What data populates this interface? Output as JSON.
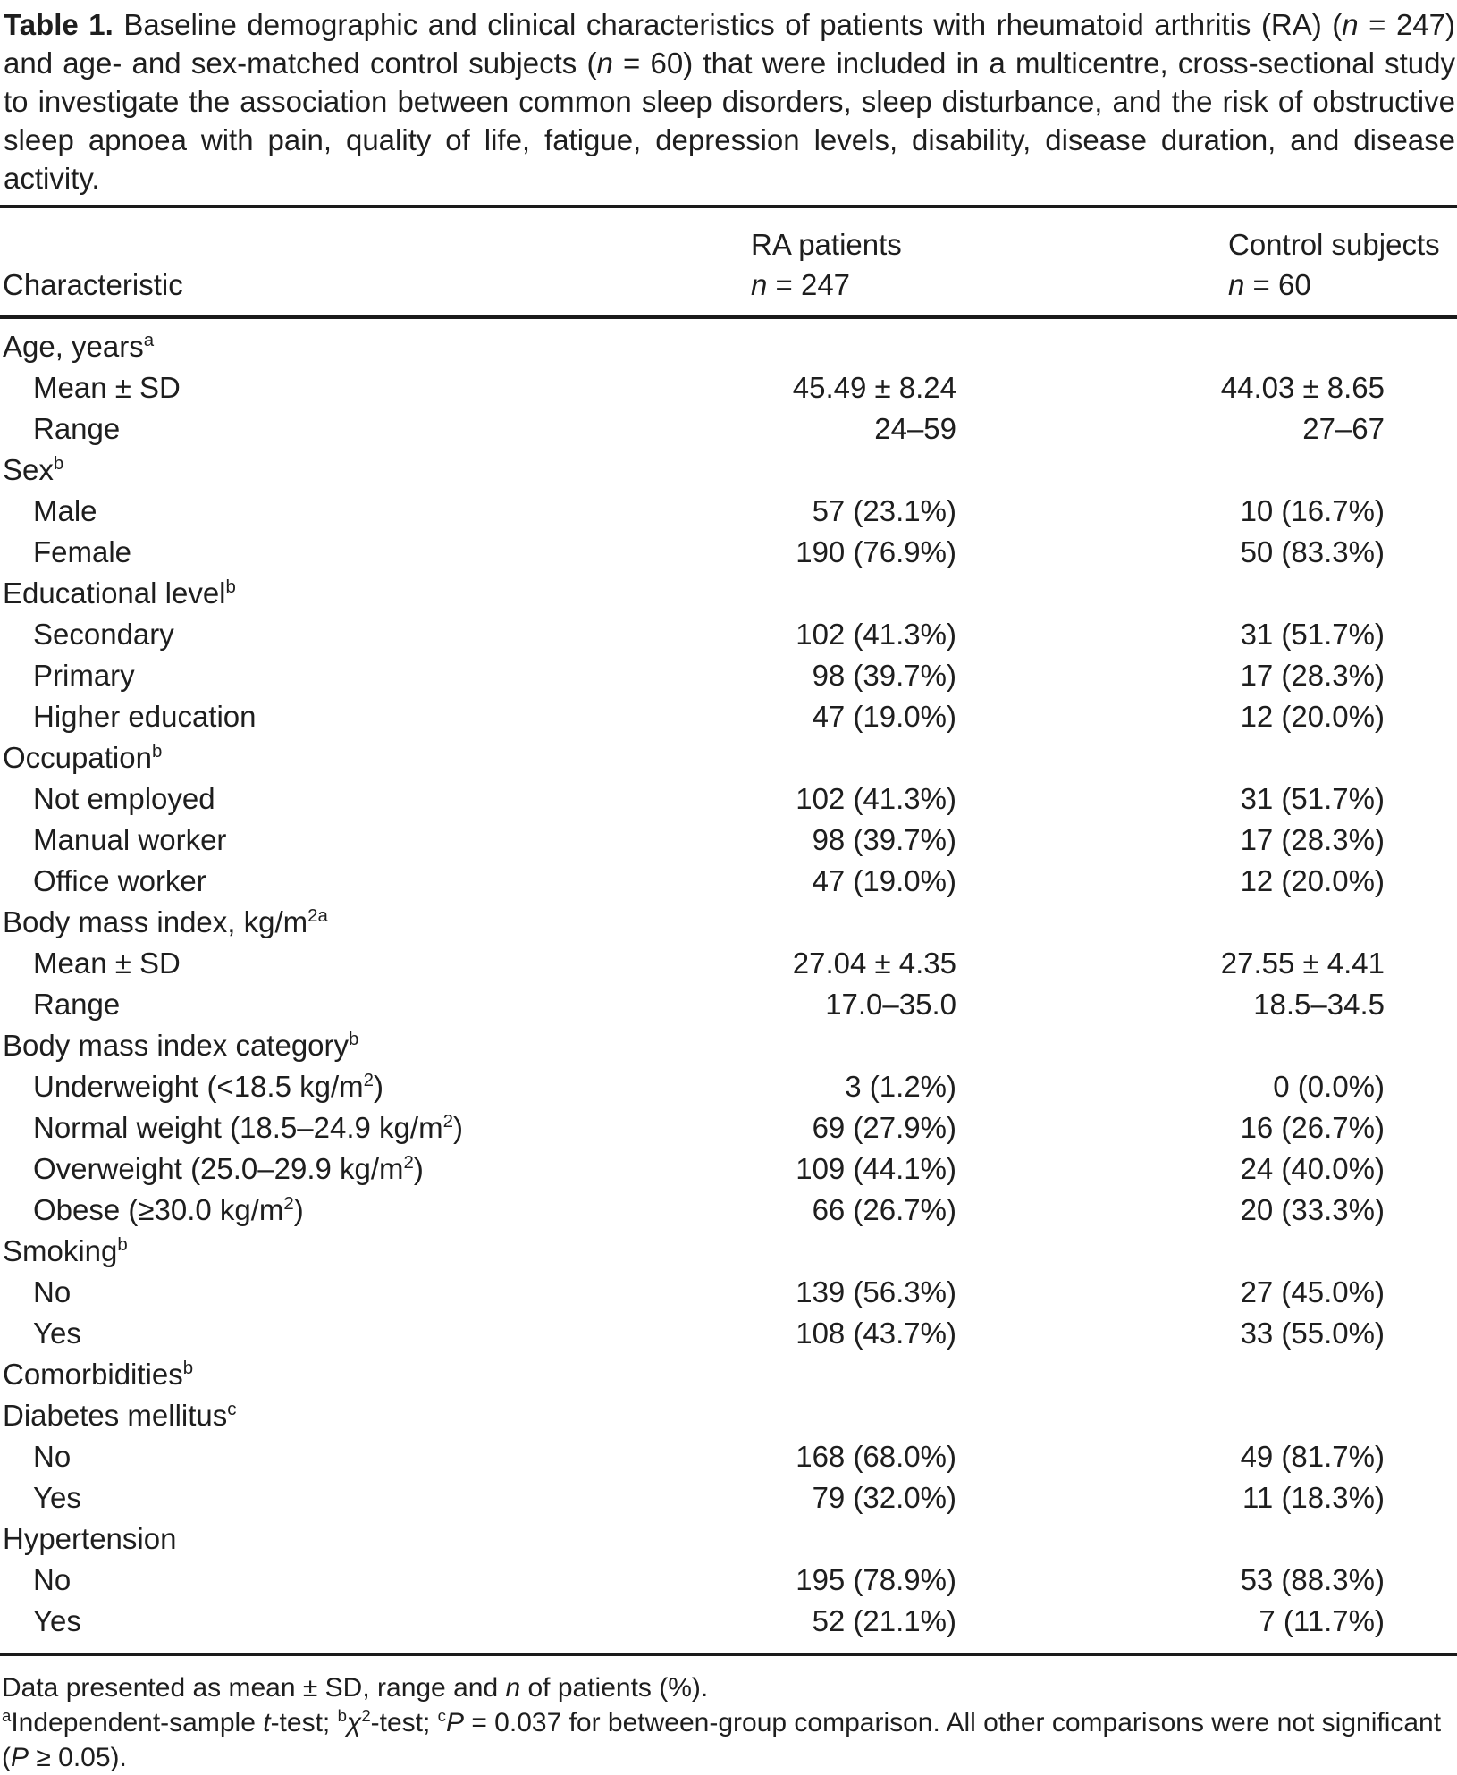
{
  "colors": {
    "background": "#ffffff",
    "text": "#1e1e1e",
    "rule": "#1a1a1a"
  },
  "title": {
    "segments": [
      {
        "t": "Table 1.",
        "b": true
      },
      {
        "t": " Baseline demographic and clinical characteristics of patients with rheumatoid arthritis (RA) ("
      },
      {
        "t": "n",
        "i": true
      },
      {
        "t": " = 247) and age- and sex-matched control subjects ("
      },
      {
        "t": "n",
        "i": true
      },
      {
        "t": " = 60) that were included in a multicentre, cross-sectional study to investigate the association between common sleep disorders, sleep disturbance, and the risk of obstructive sleep apnoea with pain, quality of life, fatigue, depression levels, disability, disease duration, and disease activity."
      }
    ]
  },
  "table": {
    "header": {
      "characteristic": "Characteristic",
      "ra_line1": "RA patients",
      "ra_line2": [
        {
          "t": "n",
          "i": true
        },
        {
          "t": " = 247"
        }
      ],
      "control_line1": "Control subjects",
      "control_line2": [
        {
          "t": "n",
          "i": true
        },
        {
          "t": " = 60"
        }
      ]
    },
    "rows": [
      {
        "type": "section",
        "label": [
          {
            "t": "Age, years"
          },
          {
            "t": "a",
            "sup": true
          }
        ]
      },
      {
        "type": "data",
        "indent": true,
        "label": [
          {
            "t": "Mean ± SD"
          }
        ],
        "ra": "45.49 ± 8.24",
        "control": "44.03 ± 8.65"
      },
      {
        "type": "data",
        "indent": true,
        "label": [
          {
            "t": "Range"
          }
        ],
        "ra": "24–59",
        "control": "27–67"
      },
      {
        "type": "section",
        "label": [
          {
            "t": "Sex"
          },
          {
            "t": "b",
            "sup": true
          }
        ]
      },
      {
        "type": "data",
        "indent": true,
        "label": [
          {
            "t": "Male"
          }
        ],
        "ra": "57 (23.1%)",
        "control": "10 (16.7%)"
      },
      {
        "type": "data",
        "indent": true,
        "label": [
          {
            "t": "Female"
          }
        ],
        "ra": "190 (76.9%)",
        "control": "50 (83.3%)"
      },
      {
        "type": "section",
        "label": [
          {
            "t": "Educational level"
          },
          {
            "t": "b",
            "sup": true
          }
        ]
      },
      {
        "type": "data",
        "indent": true,
        "label": [
          {
            "t": "Secondary"
          }
        ],
        "ra": "102 (41.3%)",
        "control": "31 (51.7%)"
      },
      {
        "type": "data",
        "indent": true,
        "label": [
          {
            "t": "Primary"
          }
        ],
        "ra": "98 (39.7%)",
        "control": "17 (28.3%)"
      },
      {
        "type": "data",
        "indent": true,
        "label": [
          {
            "t": "Higher education"
          }
        ],
        "ra": "47 (19.0%)",
        "control": "12 (20.0%)"
      },
      {
        "type": "section",
        "label": [
          {
            "t": "Occupation"
          },
          {
            "t": "b",
            "sup": true
          }
        ]
      },
      {
        "type": "data",
        "indent": true,
        "label": [
          {
            "t": "Not employed"
          }
        ],
        "ra": "102 (41.3%)",
        "control": "31 (51.7%)"
      },
      {
        "type": "data",
        "indent": true,
        "label": [
          {
            "t": "Manual worker"
          }
        ],
        "ra": "98 (39.7%)",
        "control": "17 (28.3%)"
      },
      {
        "type": "data",
        "indent": true,
        "label": [
          {
            "t": "Office worker"
          }
        ],
        "ra": "47 (19.0%)",
        "control": "12 (20.0%)"
      },
      {
        "type": "section",
        "label": [
          {
            "t": "Body mass index, kg/m"
          },
          {
            "t": "2a",
            "sup": true
          }
        ]
      },
      {
        "type": "data",
        "indent": true,
        "label": [
          {
            "t": "Mean ± SD"
          }
        ],
        "ra": "27.04 ± 4.35",
        "control": "27.55 ± 4.41"
      },
      {
        "type": "data",
        "indent": true,
        "label": [
          {
            "t": "Range"
          }
        ],
        "ra": "17.0–35.0",
        "control": "18.5–34.5"
      },
      {
        "type": "section",
        "label": [
          {
            "t": "Body mass index category"
          },
          {
            "t": "b",
            "sup": true
          }
        ]
      },
      {
        "type": "data",
        "indent": true,
        "label": [
          {
            "t": "Underweight (<18.5 kg/m"
          },
          {
            "t": "2",
            "sup": true
          },
          {
            "t": ")"
          }
        ],
        "ra": "3 (1.2%)",
        "control": "0 (0.0%)"
      },
      {
        "type": "data",
        "indent": true,
        "label": [
          {
            "t": "Normal weight (18.5–24.9 kg/m"
          },
          {
            "t": "2",
            "sup": true
          },
          {
            "t": ")"
          }
        ],
        "ra": "69 (27.9%)",
        "control": "16 (26.7%)"
      },
      {
        "type": "data",
        "indent": true,
        "label": [
          {
            "t": "Overweight (25.0–29.9 kg/m"
          },
          {
            "t": "2",
            "sup": true
          },
          {
            "t": ")"
          }
        ],
        "ra": "109 (44.1%)",
        "control": "24 (40.0%)"
      },
      {
        "type": "data",
        "indent": true,
        "label": [
          {
            "t": "Obese (≥30.0 kg/m"
          },
          {
            "t": "2",
            "sup": true
          },
          {
            "t": ")"
          }
        ],
        "ra": "66 (26.7%)",
        "control": "20 (33.3%)"
      },
      {
        "type": "section",
        "label": [
          {
            "t": "Smoking"
          },
          {
            "t": "b",
            "sup": true
          }
        ]
      },
      {
        "type": "data",
        "indent": true,
        "label": [
          {
            "t": "No"
          }
        ],
        "ra": "139 (56.3%)",
        "control": "27 (45.0%)"
      },
      {
        "type": "data",
        "indent": true,
        "label": [
          {
            "t": "Yes"
          }
        ],
        "ra": "108 (43.7%)",
        "control": "33 (55.0%)"
      },
      {
        "type": "section",
        "label": [
          {
            "t": "Comorbidities"
          },
          {
            "t": "b",
            "sup": true
          }
        ]
      },
      {
        "type": "section",
        "label": [
          {
            "t": "Diabetes mellitus"
          },
          {
            "t": "c",
            "sup": true
          }
        ]
      },
      {
        "type": "data",
        "indent": true,
        "label": [
          {
            "t": "No"
          }
        ],
        "ra": "168 (68.0%)",
        "control": "49 (81.7%)"
      },
      {
        "type": "data",
        "indent": true,
        "label": [
          {
            "t": "Yes"
          }
        ],
        "ra": "79 (32.0%)",
        "control": "11 (18.3%)"
      },
      {
        "type": "section",
        "label": [
          {
            "t": "Hypertension"
          }
        ]
      },
      {
        "type": "data",
        "indent": true,
        "label": [
          {
            "t": "No"
          }
        ],
        "ra": "195 (78.9%)",
        "control": "53 (88.3%)"
      },
      {
        "type": "data",
        "indent": true,
        "label": [
          {
            "t": "Yes"
          }
        ],
        "ra": "52 (21.1%)",
        "control": "7 (11.7%)"
      }
    ]
  },
  "footnotes": [
    {
      "segments": [
        {
          "t": "Data presented as mean ± SD, range and "
        },
        {
          "t": "n",
          "i": true
        },
        {
          "t": " of patients (%)."
        }
      ]
    },
    {
      "segments": [
        {
          "t": "a",
          "sup": true
        },
        {
          "t": "Independent-sample "
        },
        {
          "t": "t",
          "i": true
        },
        {
          "t": "-test; "
        },
        {
          "t": "b",
          "sup": true
        },
        {
          "t": "χ",
          "i": true
        },
        {
          "t": "2",
          "sup": true
        },
        {
          "t": "-test; "
        },
        {
          "t": "c",
          "sup": true
        },
        {
          "t": "P",
          "i": true
        },
        {
          "t": " = 0.037 for between-group comparison. All other comparisons were not significant ("
        },
        {
          "t": "P",
          "i": true
        },
        {
          "t": " ≥ 0.05)."
        }
      ]
    }
  ]
}
